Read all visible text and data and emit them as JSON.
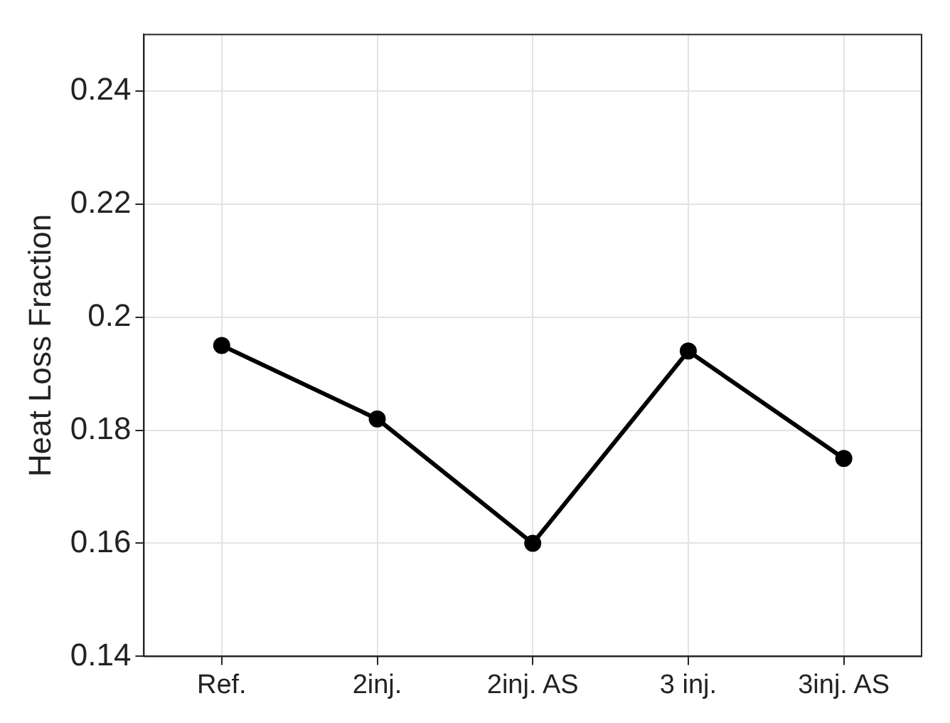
{
  "chart_data": {
    "type": "line",
    "ylabel": "Heat Loss Fraction",
    "categories": [
      "Ref.",
      "2inj.",
      "2inj. AS",
      "3 inj.",
      "3inj. AS"
    ],
    "series": [
      {
        "color": "#000000",
        "values": [
          0.195,
          0.182,
          0.16,
          0.194,
          0.175
        ]
      }
    ],
    "ylim": [
      0.14,
      0.25
    ],
    "yticks": [
      0.14,
      0.16,
      0.18,
      0.2,
      0.22,
      0.24
    ],
    "grid": true,
    "marker": "circle",
    "line_style": "solid"
  }
}
